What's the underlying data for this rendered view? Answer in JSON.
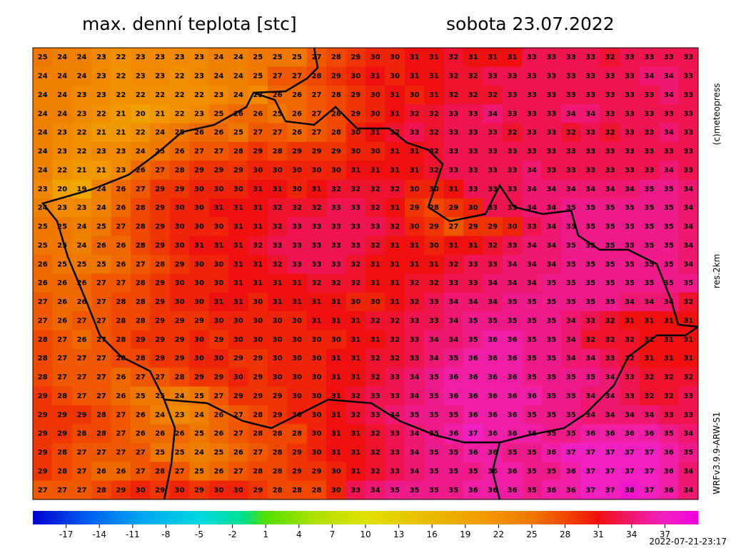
{
  "header": {
    "title": "max. denní teplota [stc]",
    "date": "sobota 23.07.2022"
  },
  "side_labels": {
    "copyright": "(c)meteopress",
    "resolution": "res.2km",
    "model": "WRFv3.9.9-ARW-S1"
  },
  "footer": {
    "timestamp": "2022-07-21-23:17"
  },
  "colorbar": {
    "lim": [
      -20,
      40
    ],
    "ticks": [
      -17,
      -14,
      -11,
      -8,
      -5,
      -2,
      1,
      4,
      7,
      10,
      13,
      16,
      19,
      22,
      25,
      28,
      31,
      34,
      37
    ],
    "stops": [
      {
        "value": -20,
        "color": "#0000d0"
      },
      {
        "value": -15,
        "color": "#0060f0"
      },
      {
        "value": -10,
        "color": "#00a8f0"
      },
      {
        "value": -5,
        "color": "#00d8e0"
      },
      {
        "value": -1,
        "color": "#00e090"
      },
      {
        "value": 1,
        "color": "#50e000"
      },
      {
        "value": 5,
        "color": "#a8e000"
      },
      {
        "value": 10,
        "color": "#e0e000"
      },
      {
        "value": 15,
        "color": "#e8c000"
      },
      {
        "value": 20,
        "color": "#f0a000"
      },
      {
        "value": 25,
        "color": "#f07800"
      },
      {
        "value": 28,
        "color": "#f04800"
      },
      {
        "value": 31,
        "color": "#f01010"
      },
      {
        "value": 34,
        "color": "#f01870"
      },
      {
        "value": 37,
        "color": "#f020c0"
      },
      {
        "value": 40,
        "color": "#f000e0"
      }
    ]
  },
  "map": {
    "values": [
      [
        25,
        24,
        24,
        23,
        22,
        23,
        23,
        23,
        23,
        24,
        24,
        25,
        25,
        25,
        27,
        28,
        29,
        30,
        30,
        31,
        31,
        32,
        31,
        31,
        31,
        33,
        33,
        33,
        33,
        32,
        33,
        33,
        33,
        33
      ],
      [
        24,
        24,
        24,
        23,
        22,
        23,
        23,
        22,
        23,
        24,
        24,
        25,
        27,
        27,
        28,
        29,
        30,
        31,
        30,
        31,
        31,
        32,
        32,
        33,
        33,
        33,
        33,
        33,
        33,
        33,
        33,
        34,
        34,
        33
      ],
      [
        24,
        24,
        23,
        23,
        22,
        22,
        22,
        22,
        22,
        23,
        24,
        23,
        26,
        26,
        27,
        28,
        29,
        30,
        31,
        30,
        31,
        32,
        32,
        32,
        33,
        33,
        33,
        33,
        33,
        33,
        33,
        33,
        34,
        33
      ],
      [
        24,
        24,
        23,
        22,
        21,
        20,
        21,
        22,
        23,
        25,
        26,
        26,
        25,
        26,
        27,
        28,
        29,
        30,
        31,
        32,
        32,
        33,
        33,
        34,
        33,
        33,
        33,
        34,
        34,
        33,
        33,
        33,
        33,
        33
      ],
      [
        24,
        23,
        22,
        21,
        21,
        22,
        24,
        25,
        26,
        26,
        25,
        27,
        27,
        26,
        27,
        28,
        30,
        31,
        32,
        33,
        32,
        33,
        33,
        33,
        32,
        33,
        33,
        32,
        33,
        32,
        33,
        33,
        34,
        33
      ],
      [
        24,
        23,
        22,
        23,
        23,
        24,
        25,
        26,
        27,
        27,
        28,
        29,
        28,
        29,
        29,
        29,
        30,
        30,
        31,
        31,
        32,
        33,
        33,
        33,
        33,
        33,
        33,
        33,
        33,
        33,
        33,
        33,
        33,
        33
      ],
      [
        24,
        22,
        21,
        21,
        23,
        26,
        27,
        28,
        29,
        29,
        29,
        30,
        30,
        30,
        30,
        30,
        31,
        31,
        31,
        31,
        32,
        33,
        33,
        33,
        33,
        34,
        33,
        33,
        33,
        33,
        33,
        33,
        34,
        33
      ],
      [
        23,
        20,
        19,
        24,
        26,
        27,
        29,
        29,
        30,
        30,
        30,
        31,
        31,
        30,
        31,
        32,
        32,
        32,
        32,
        30,
        30,
        31,
        33,
        33,
        33,
        34,
        34,
        34,
        34,
        34,
        34,
        35,
        35,
        34
      ],
      [
        24,
        23,
        23,
        24,
        26,
        28,
        29,
        30,
        30,
        31,
        31,
        31,
        32,
        32,
        32,
        33,
        33,
        32,
        31,
        29,
        28,
        29,
        30,
        33,
        33,
        34,
        34,
        35,
        35,
        35,
        35,
        35,
        35,
        34
      ],
      [
        25,
        25,
        24,
        25,
        27,
        28,
        29,
        30,
        30,
        30,
        31,
        31,
        32,
        33,
        33,
        33,
        33,
        33,
        32,
        30,
        29,
        27,
        29,
        29,
        30,
        33,
        34,
        35,
        35,
        35,
        35,
        35,
        35,
        34
      ],
      [
        25,
        25,
        24,
        26,
        26,
        28,
        29,
        30,
        31,
        31,
        31,
        32,
        33,
        33,
        33,
        33,
        33,
        32,
        31,
        31,
        30,
        31,
        31,
        32,
        33,
        34,
        34,
        35,
        35,
        35,
        35,
        35,
        35,
        34
      ],
      [
        26,
        25,
        25,
        25,
        26,
        27,
        28,
        29,
        30,
        30,
        31,
        31,
        32,
        33,
        33,
        33,
        32,
        31,
        31,
        31,
        31,
        32,
        33,
        33,
        34,
        34,
        34,
        35,
        35,
        35,
        35,
        35,
        35,
        34
      ],
      [
        26,
        26,
        26,
        27,
        27,
        28,
        29,
        30,
        30,
        30,
        31,
        31,
        31,
        31,
        32,
        32,
        32,
        31,
        31,
        32,
        32,
        33,
        33,
        34,
        34,
        34,
        35,
        35,
        35,
        35,
        35,
        35,
        35,
        35
      ],
      [
        27,
        26,
        26,
        27,
        28,
        28,
        29,
        30,
        30,
        31,
        31,
        30,
        31,
        31,
        31,
        31,
        30,
        30,
        31,
        32,
        33,
        34,
        34,
        34,
        35,
        35,
        35,
        35,
        35,
        35,
        34,
        34,
        34,
        32
      ],
      [
        27,
        26,
        27,
        27,
        28,
        28,
        29,
        29,
        29,
        30,
        30,
        30,
        30,
        30,
        31,
        31,
        31,
        32,
        32,
        33,
        33,
        34,
        35,
        35,
        35,
        35,
        35,
        34,
        33,
        32,
        31,
        31,
        31,
        31
      ],
      [
        28,
        27,
        26,
        27,
        28,
        29,
        29,
        29,
        30,
        29,
        30,
        30,
        30,
        30,
        30,
        30,
        31,
        31,
        32,
        33,
        34,
        34,
        35,
        36,
        36,
        35,
        35,
        34,
        32,
        32,
        32,
        31,
        31,
        31
      ],
      [
        28,
        27,
        27,
        27,
        28,
        28,
        29,
        29,
        30,
        30,
        29,
        29,
        30,
        30,
        30,
        31,
        31,
        32,
        32,
        33,
        34,
        35,
        36,
        36,
        36,
        35,
        35,
        34,
        34,
        33,
        32,
        31,
        31,
        31
      ],
      [
        28,
        27,
        27,
        27,
        26,
        27,
        27,
        28,
        29,
        29,
        30,
        29,
        30,
        30,
        30,
        31,
        31,
        32,
        33,
        34,
        35,
        36,
        36,
        36,
        36,
        35,
        35,
        35,
        35,
        34,
        33,
        32,
        32,
        32
      ],
      [
        29,
        28,
        27,
        27,
        26,
        25,
        25,
        24,
        25,
        27,
        29,
        29,
        29,
        30,
        30,
        31,
        32,
        33,
        33,
        34,
        35,
        36,
        36,
        36,
        36,
        36,
        35,
        35,
        34,
        34,
        33,
        32,
        32,
        33
      ],
      [
        29,
        29,
        29,
        28,
        27,
        26,
        24,
        23,
        24,
        26,
        27,
        28,
        29,
        30,
        30,
        31,
        32,
        33,
        34,
        35,
        35,
        35,
        36,
        36,
        36,
        35,
        35,
        35,
        34,
        34,
        34,
        34,
        33,
        33
      ],
      [
        29,
        29,
        28,
        28,
        27,
        26,
        26,
        26,
        25,
        26,
        27,
        28,
        28,
        28,
        30,
        31,
        31,
        32,
        33,
        34,
        35,
        36,
        37,
        36,
        36,
        36,
        35,
        35,
        36,
        36,
        36,
        36,
        35,
        34
      ],
      [
        29,
        28,
        27,
        27,
        27,
        27,
        25,
        25,
        24,
        25,
        26,
        27,
        28,
        29,
        30,
        31,
        31,
        32,
        33,
        34,
        35,
        35,
        36,
        36,
        35,
        35,
        36,
        37,
        37,
        37,
        37,
        37,
        36,
        35
      ],
      [
        29,
        28,
        27,
        26,
        26,
        27,
        28,
        27,
        25,
        26,
        27,
        28,
        28,
        29,
        29,
        30,
        31,
        32,
        33,
        34,
        35,
        35,
        35,
        36,
        36,
        35,
        35,
        36,
        37,
        37,
        37,
        37,
        36,
        34
      ],
      [
        27,
        27,
        27,
        28,
        29,
        30,
        29,
        30,
        29,
        30,
        30,
        29,
        28,
        28,
        28,
        30,
        33,
        34,
        35,
        35,
        35,
        35,
        36,
        36,
        36,
        35,
        36,
        36,
        37,
        37,
        38,
        37,
        36,
        34
      ]
    ]
  }
}
